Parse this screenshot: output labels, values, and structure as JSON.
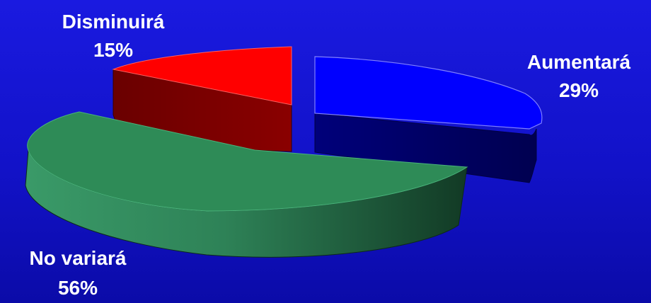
{
  "chart_data": {
    "type": "pie",
    "style": "3d-exploded",
    "title": "",
    "slices": [
      {
        "label": "Aumentará",
        "value": 29,
        "value_label": "29%",
        "color": "#0000ff",
        "side_color": "#000080"
      },
      {
        "label": "No variará",
        "value": 56,
        "value_label": "56%",
        "color": "#2e8b57",
        "side_color": "#1f5a3a"
      },
      {
        "label": "Disminuirá",
        "value": 15,
        "value_label": "15%",
        "color": "#ff0000",
        "side_color": "#7a0000"
      }
    ],
    "legend": "none",
    "background_color": "#1515d6"
  }
}
